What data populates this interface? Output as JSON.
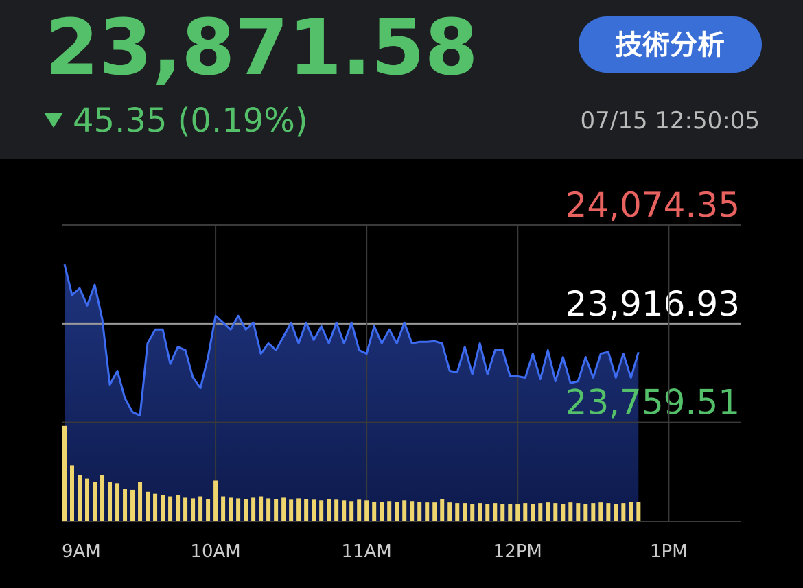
{
  "header": {
    "price": "23,871.58",
    "change": "45.35 (0.19%)",
    "button": "技術分析",
    "timestamp": "07/15 12:50:05"
  },
  "chart_data": {
    "type": "line",
    "x": [
      9.0,
      9.05,
      9.1,
      9.15,
      9.2,
      9.25,
      9.3,
      9.35,
      9.4,
      9.45,
      9.5,
      9.55,
      9.6,
      9.65,
      9.7,
      9.75,
      9.8,
      9.85,
      9.9,
      9.95,
      10.0,
      10.05,
      10.1,
      10.15,
      10.2,
      10.25,
      10.3,
      10.35,
      10.4,
      10.45,
      10.5,
      10.55,
      10.6,
      10.65,
      10.7,
      10.75,
      10.8,
      10.85,
      10.9,
      10.95,
      11.0,
      11.05,
      11.1,
      11.15,
      11.2,
      11.25,
      11.3,
      11.35,
      11.4,
      11.45,
      11.5,
      11.55,
      11.6,
      11.65,
      11.7,
      11.75,
      11.8,
      11.85,
      11.9,
      11.95,
      12.0,
      12.05,
      12.1,
      12.15,
      12.2,
      12.25,
      12.3,
      12.35,
      12.4,
      12.45,
      12.5,
      12.55,
      12.6,
      12.65,
      12.7,
      12.75,
      12.8
    ],
    "series": [
      {
        "color": "#3d6cf0",
        "values": [
          24011.8,
          23962.5,
          23973.4,
          23946,
          23979,
          23924,
          23819.8,
          23841.8,
          23798,
          23776,
          23770.5,
          23885.7,
          23907.6,
          23907.6,
          23852.8,
          23880,
          23874.7,
          23831,
          23814.4,
          23863.7,
          23929.6,
          23918.6,
          23907.6,
          23929.6,
          23907.6,
          23918.6,
          23869,
          23885.7,
          23874.7,
          23896.6,
          23918.6,
          23885.7,
          23918.6,
          23891,
          23913,
          23885.7,
          23918.6,
          23885.7,
          23918.6,
          23874.7,
          23869,
          23913,
          23885.7,
          23907.6,
          23885.7,
          23918.6,
          23885.7,
          23887.9,
          23887.9,
          23889,
          23885.7,
          23841.8,
          23839.6,
          23880,
          23836.3,
          23885.7,
          23836.3,
          23874.7,
          23874.7,
          23833,
          23833,
          23830.8,
          23869,
          23828.6,
          23874.7,
          23825.3,
          23863.7,
          23822,
          23825.3,
          23863.7,
          23830.8,
          23869,
          23872,
          23830.8,
          23869,
          23830.8,
          23871.6
        ]
      },
      {
        "color": "#eed56e",
        "axis": "y2",
        "values": [
          145,
          85,
          70,
          65,
          60,
          70,
          60,
          58,
          50,
          48,
          60,
          45,
          42,
          40,
          38,
          40,
          36,
          35,
          38,
          34,
          62,
          38,
          36,
          35,
          34,
          36,
          38,
          35,
          34,
          36,
          33,
          35,
          34,
          33,
          32,
          34,
          33,
          32,
          31,
          33,
          32,
          30,
          30,
          31,
          30,
          32,
          31,
          30,
          29,
          29,
          34,
          29,
          28,
          28,
          27,
          28,
          27,
          28,
          27,
          27,
          26,
          28,
          27,
          28,
          29,
          28,
          27,
          29,
          28,
          27,
          28,
          29,
          28,
          27,
          28,
          30,
          30
        ]
      }
    ],
    "xlim": [
      9,
      13.48
    ],
    "xticks": [
      {
        "value": 9,
        "label": "9AM"
      },
      {
        "value": 10,
        "label": "10AM"
      },
      {
        "value": 11,
        "label": "11AM"
      },
      {
        "value": 12,
        "label": "12PM"
      },
      {
        "value": 13,
        "label": "1PM"
      }
    ],
    "ylim": [
      23601.5,
      24074.35
    ],
    "yticks": [
      {
        "value": 23759.51,
        "label": "23,759.51"
      },
      {
        "value": 23916.93,
        "label": "23,916.93"
      },
      {
        "value": 24074.35,
        "label": "24,074.35"
      }
    ],
    "ytick_colors": [
      "#55c06a",
      "#ffffff",
      "#e8625f"
    ],
    "y2lim": [
      0,
      450
    ],
    "grid": true
  }
}
